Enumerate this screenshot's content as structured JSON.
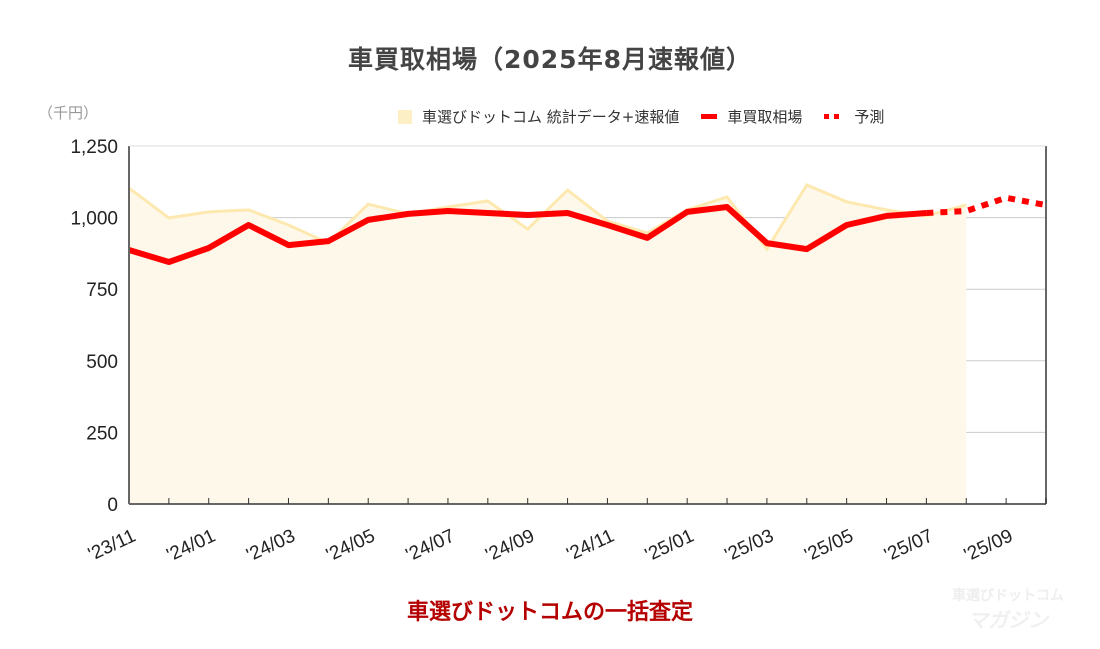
{
  "title": "車買取相場（2025年8月速報値）",
  "unit": "（千円）",
  "legend": {
    "area": "車選びドットコム 統計データ+速報値",
    "line": "車買取相場",
    "forecast": "予測"
  },
  "footer": "車選びドットコムの一括査定",
  "watermark": {
    "line1": "車選びドットコム",
    "line2": "マガジン"
  },
  "colors": {
    "area_fill": "#fdf8e9",
    "area_line": "#fde9b0",
    "line": "#ff0000",
    "grid": "#cccccc",
    "axis": "#666666"
  },
  "chart_data": {
    "type": "line",
    "title": "車買取相場（2025年8月速報値）",
    "ylabel": "千円",
    "ylim": [
      0,
      1250
    ],
    "yticks": [
      0,
      250,
      500,
      750,
      1000,
      1250
    ],
    "xtick_labels": [
      "'23/11",
      "'24/01",
      "'24/03",
      "'24/05",
      "'24/07",
      "'24/09",
      "'24/11",
      "'25/01",
      "'25/03",
      "'25/05",
      "'25/07",
      "'25/09"
    ],
    "x": [
      "'23/11",
      "'23/12",
      "'24/01",
      "'24/02",
      "'24/03",
      "'24/04",
      "'24/05",
      "'24/06",
      "'24/07",
      "'24/08",
      "'24/09",
      "'24/10",
      "'24/11",
      "'24/12",
      "'25/01",
      "'25/02",
      "'25/03",
      "'25/04",
      "'25/05",
      "'25/06",
      "'25/07",
      "'25/08",
      "'25/09",
      "'25/10"
    ],
    "legend_position": "top-right",
    "grid": true,
    "series": [
      {
        "name": "車選びドットコム 統計データ+速報値",
        "type": "area",
        "values": [
          1103,
          999,
          1020,
          1027,
          974,
          911,
          1047,
          1013,
          1037,
          1058,
          960,
          1096,
          988,
          946,
          1027,
          1072,
          890,
          1114,
          1055,
          1027,
          1006,
          1044,
          null,
          null
        ]
      },
      {
        "name": "車買取相場",
        "type": "line",
        "values": [
          887,
          845,
          894,
          974,
          904,
          918,
          992,
          1013,
          1023,
          1016,
          1009,
          1016,
          974,
          929,
          1020,
          1037,
          911,
          890,
          974,
          1006,
          1016,
          null,
          null,
          null
        ]
      },
      {
        "name": "予測",
        "type": "line-dotted",
        "values": [
          null,
          null,
          null,
          null,
          null,
          null,
          null,
          null,
          null,
          null,
          null,
          null,
          null,
          null,
          null,
          null,
          null,
          null,
          null,
          null,
          1016,
          1023,
          1069,
          1044
        ]
      }
    ]
  }
}
